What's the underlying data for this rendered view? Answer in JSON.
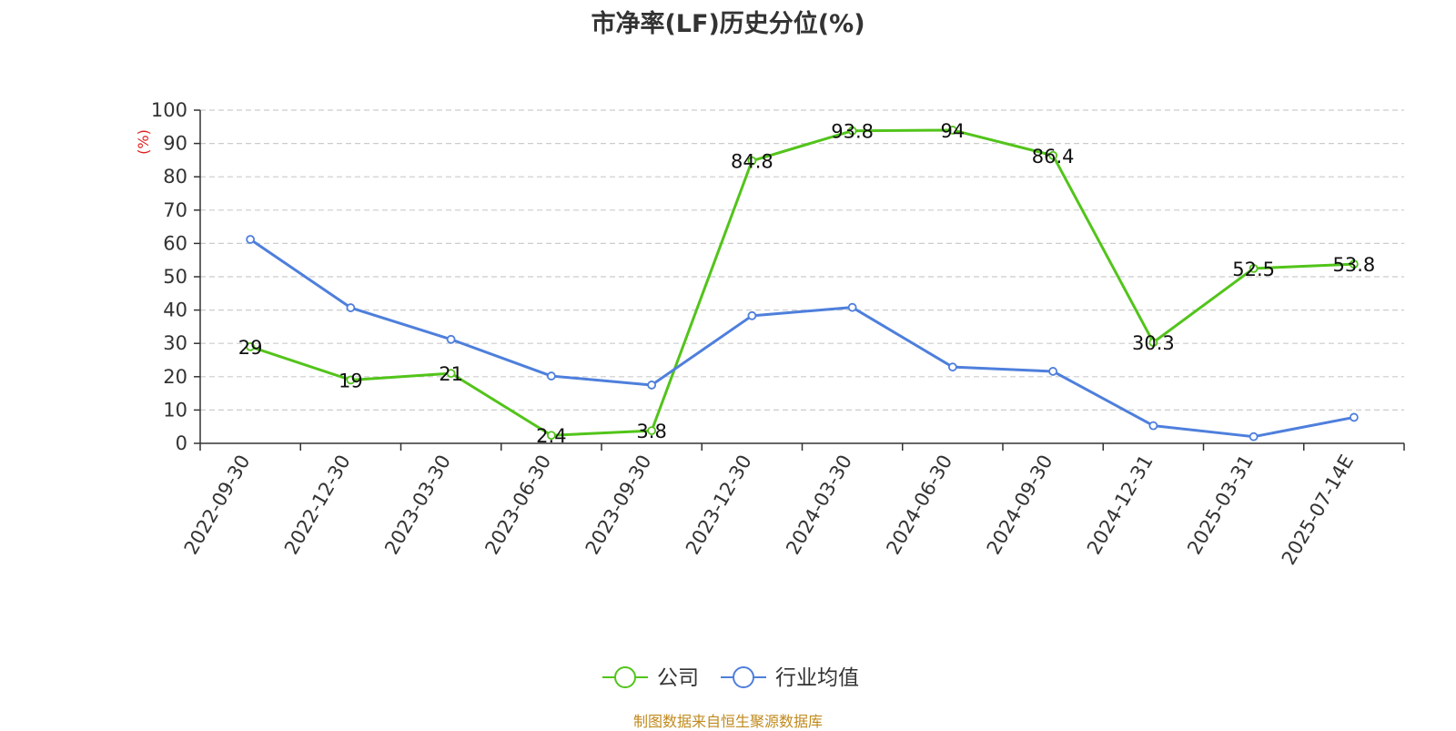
{
  "chart_data": {
    "type": "line",
    "title": "市净率(LF)历史分位(%)",
    "ylabel": "(%)",
    "xlabel": "",
    "ylim": [
      0,
      100
    ],
    "yticks": [
      0,
      10,
      20,
      30,
      40,
      50,
      60,
      70,
      80,
      90,
      100
    ],
    "grid": true,
    "legend_position": "bottom-center",
    "categories": [
      "2022-09-30",
      "2022-12-30",
      "2023-03-30",
      "2023-06-30",
      "2023-09-30",
      "2023-12-30",
      "2024-03-30",
      "2024-06-30",
      "2024-09-30",
      "2024-12-31",
      "2025-03-31",
      "2025-07-14E"
    ],
    "series": [
      {
        "name": "公司",
        "color": "#52c41a",
        "values": [
          29,
          19,
          21,
          2.4,
          3.8,
          84.8,
          93.8,
          94,
          86.4,
          30.3,
          52.5,
          53.8
        ],
        "labels": [
          "29",
          "19",
          "21",
          "2.4",
          "3.8",
          "84.8",
          "93.8",
          "94",
          "86.4",
          "30.3",
          "52.5",
          "53.8"
        ]
      },
      {
        "name": "行业均值",
        "color": "#4e7fdc",
        "values": [
          61.2,
          40.7,
          31.2,
          20.2,
          17.5,
          38.3,
          40.8,
          22.9,
          21.6,
          5.3,
          2.0,
          7.8
        ]
      }
    ]
  },
  "footer": {
    "source": "制图数据来自恒生聚源数据库"
  },
  "colors": {
    "axis_label_unit": "#e02020",
    "grid": "#cccccc",
    "axis": "#333333"
  }
}
